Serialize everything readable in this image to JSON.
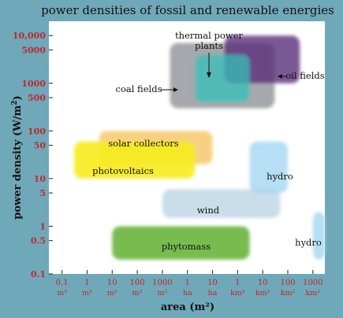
{
  "colors": {
    "frame": "#6fa8b8",
    "plot_bg": "#ffffff",
    "tick_red": "#c0282d",
    "title_text": "#111111"
  },
  "chart_data": {
    "type": "area",
    "title": "power densities of fossil and renewable energies",
    "xlabel": "area (m²)",
    "ylabel": "power density (W/m²)",
    "x_scale": "log",
    "y_scale": "log",
    "xlim_m2": [
      0.03,
      3000000000
    ],
    "ylim_w_per_m2": [
      0.1,
      20000
    ],
    "y_ticks": [
      {
        "value": 0.1,
        "label": "0.1"
      },
      {
        "value": 0.5,
        "label": "0.5"
      },
      {
        "value": 1,
        "label": "1"
      },
      {
        "value": 5,
        "label": "5"
      },
      {
        "value": 10,
        "label": "10"
      },
      {
        "value": 50,
        "label": "50"
      },
      {
        "value": 100,
        "label": "100"
      },
      {
        "value": 500,
        "label": "500"
      },
      {
        "value": 1000,
        "label": "1000"
      },
      {
        "value": 5000,
        "label": "5000"
      },
      {
        "value": 10000,
        "label": "10,000"
      }
    ],
    "x_ticks": [
      {
        "value": 0.1,
        "label": "0.1",
        "unit": "m²"
      },
      {
        "value": 1,
        "label": "1",
        "unit": "m²"
      },
      {
        "value": 10,
        "label": "10",
        "unit": "m²"
      },
      {
        "value": 100,
        "label": "100",
        "unit": "m²"
      },
      {
        "value": 1000,
        "label": "1000",
        "unit": "m²"
      },
      {
        "value": 10000,
        "label": "1",
        "unit": "ha"
      },
      {
        "value": 100000,
        "label": "10",
        "unit": "ha"
      },
      {
        "value": 1000000,
        "label": "1",
        "unit": "km²"
      },
      {
        "value": 10000000,
        "label": "10",
        "unit": "km²"
      },
      {
        "value": 100000000,
        "label": "100",
        "unit": "km²"
      },
      {
        "value": 1000000000,
        "label": "1000",
        "unit": "km²"
      }
    ],
    "regions": [
      {
        "name": "coal fields",
        "x_range": [
          2000,
          30000000
        ],
        "y_range": [
          300,
          7000
        ],
        "color": "#8f9297"
      },
      {
        "name": "oil fields",
        "x_range": [
          300000,
          300000000
        ],
        "y_range": [
          1000,
          10000
        ],
        "color": "#5b2f7b"
      },
      {
        "name": "thermal power plants",
        "x_range": [
          20000,
          3000000
        ],
        "y_range": [
          400,
          4000
        ],
        "color": "#35c0b8"
      },
      {
        "name": "solar collectors",
        "x_range": [
          3,
          100000
        ],
        "y_range": [
          20,
          100
        ],
        "color": "#f5c05a"
      },
      {
        "name": "photovoltaics",
        "x_range": [
          0.3,
          20000
        ],
        "y_range": [
          10,
          60
        ],
        "color": "#f6ec1e"
      },
      {
        "name": "wind",
        "x_range": [
          1000,
          50000000
        ],
        "y_range": [
          1.5,
          6
        ],
        "color": "#b7d2e3"
      },
      {
        "name": "hydro",
        "x_range": [
          3000000,
          100000000
        ],
        "y_range": [
          5,
          60
        ],
        "color": "#a9d8f2"
      },
      {
        "name": "phytomass",
        "x_range": [
          10,
          3000000
        ],
        "y_range": [
          0.2,
          1
        ],
        "color": "#69b43c"
      },
      {
        "name": "hydro",
        "x_range": [
          1000000000,
          3000000000
        ],
        "y_range": [
          0.2,
          2
        ],
        "color": "#a9d8f2"
      }
    ],
    "annotations": [
      {
        "text": "coal fields",
        "points_to": "coal fields"
      },
      {
        "text": "oil fields",
        "points_to": "oil fields"
      },
      {
        "text": "thermal power plants",
        "points_to": "thermal power plants"
      }
    ],
    "grid": false,
    "legend": "none"
  }
}
